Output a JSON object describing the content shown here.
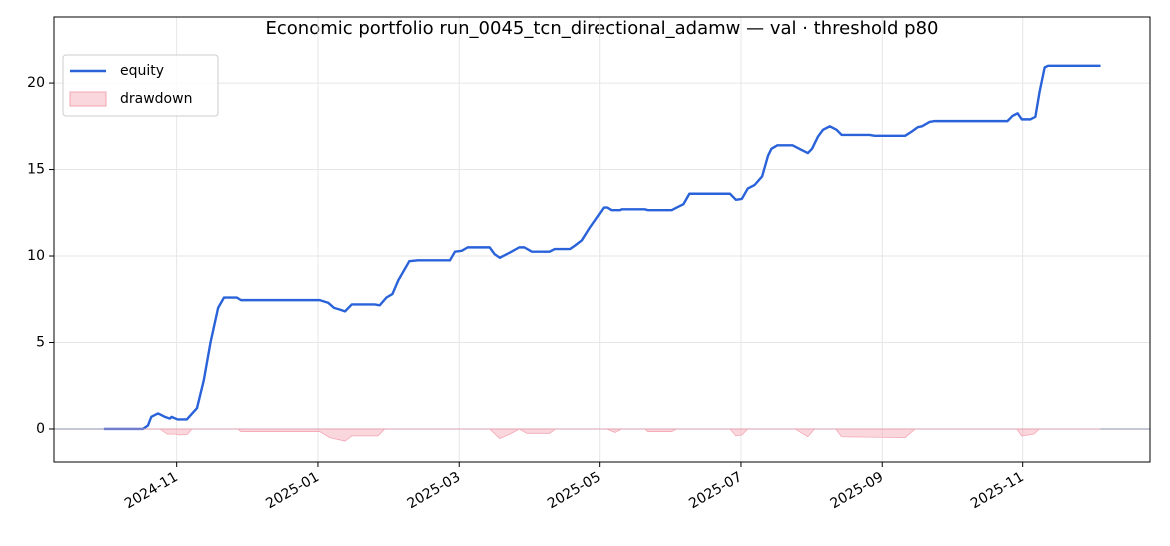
{
  "chart_data": {
    "type": "line",
    "title": "Economic portfolio run_0045_tcn_directional_adamw — val · threshold p80",
    "xlim": [
      2024.688,
      2025.9835
    ],
    "ylim": [
      -1.91,
      23.82
    ],
    "xticks": [
      {
        "value": 2024.833,
        "label": "2024-11"
      },
      {
        "value": 2025.0,
        "label": "2025-01"
      },
      {
        "value": 2025.167,
        "label": "2025-03"
      },
      {
        "value": 2025.333,
        "label": "2025-05"
      },
      {
        "value": 2025.5,
        "label": "2025-07"
      },
      {
        "value": 2025.667,
        "label": "2025-09"
      },
      {
        "value": 2025.833,
        "label": "2025-11"
      }
    ],
    "yticks": [
      0,
      5,
      10,
      15,
      20
    ],
    "grid": true,
    "legend": "upper-left",
    "hline": 0,
    "series": [
      {
        "name": "equity",
        "color": "#2962d9",
        "style": "line",
        "x": [
          2024.747,
          2024.793,
          2024.799,
          2024.803,
          2024.811,
          2024.819,
          2024.825,
          2024.827,
          2024.834,
          2024.845,
          2024.857,
          2024.865,
          2024.873,
          2024.882,
          2024.889,
          2024.904,
          2024.909,
          2025.002,
          2025.012,
          2025.019,
          2025.026,
          2025.032,
          2025.04,
          2025.067,
          2025.073,
          2025.081,
          2025.088,
          2025.095,
          2025.108,
          2025.118,
          2025.156,
          2025.162,
          2025.17,
          2025.177,
          2025.203,
          2025.209,
          2025.215,
          2025.227,
          2025.238,
          2025.244,
          2025.253,
          2025.274,
          2025.28,
          2025.298,
          2025.304,
          2025.312,
          2025.321,
          2025.331,
          2025.338,
          2025.342,
          2025.347,
          2025.357,
          2025.359,
          2025.386,
          2025.39,
          2025.418,
          2025.424,
          2025.432,
          2025.439,
          2025.487,
          2025.494,
          2025.501,
          2025.508,
          2025.516,
          2025.525,
          2025.532,
          2025.536,
          2025.543,
          2025.561,
          2025.569,
          2025.579,
          2025.584,
          2025.591,
          2025.597,
          2025.605,
          2025.613,
          2025.619,
          2025.652,
          2025.658,
          2025.694,
          2025.702,
          2025.709,
          2025.714,
          2025.723,
          2025.729,
          2025.815,
          2025.821,
          2025.827,
          2025.832,
          2025.842,
          2025.848,
          2025.853,
          2025.859,
          2025.863,
          2025.925
        ],
        "values": [
          0,
          0,
          0.2,
          0.7,
          0.9,
          0.7,
          0.6,
          0.7,
          0.55,
          0.55,
          1.2,
          2.8,
          5.0,
          7.0,
          7.6,
          7.6,
          7.45,
          7.45,
          7.3,
          7.0,
          6.9,
          6.8,
          7.2,
          7.2,
          7.15,
          7.6,
          7.8,
          8.6,
          9.7,
          9.75,
          9.75,
          10.25,
          10.3,
          10.5,
          10.5,
          10.1,
          9.9,
          10.2,
          10.5,
          10.5,
          10.25,
          10.25,
          10.4,
          10.4,
          10.6,
          10.9,
          11.6,
          12.3,
          12.8,
          12.8,
          12.65,
          12.65,
          12.7,
          12.7,
          12.65,
          12.65,
          12.8,
          13.0,
          13.6,
          13.6,
          13.25,
          13.3,
          13.9,
          14.1,
          14.6,
          15.8,
          16.2,
          16.4,
          16.4,
          16.2,
          15.95,
          16.2,
          16.9,
          17.3,
          17.5,
          17.3,
          17.0,
          17.0,
          16.95,
          16.95,
          17.2,
          17.45,
          17.5,
          17.75,
          17.8,
          17.8,
          18.1,
          18.25,
          17.9,
          17.9,
          18.05,
          19.5,
          20.9,
          21.0,
          21.0
        ]
      },
      {
        "name": "drawdown",
        "color": "#f4a6b4",
        "style": "area",
        "x": [
          2024.747,
          2024.813,
          2024.822,
          2024.831,
          2024.837,
          2024.846,
          2024.851,
          2024.905,
          2024.909,
          2025.002,
          2025.014,
          2025.032,
          2025.04,
          2025.071,
          2025.079,
          2025.203,
          2025.215,
          2025.227,
          2025.238,
          2025.247,
          2025.274,
          2025.281,
          2025.341,
          2025.351,
          2025.359,
          2025.386,
          2025.39,
          2025.418,
          2025.424,
          2025.487,
          2025.494,
          2025.501,
          2025.508,
          2025.564,
          2025.579,
          2025.587,
          2025.612,
          2025.619,
          2025.694,
          2025.706,
          2025.826,
          2025.832,
          2025.846,
          2025.853,
          2025.925
        ],
        "values": [
          0,
          0,
          -0.3,
          -0.3,
          -0.35,
          -0.3,
          0,
          0,
          -0.15,
          -0.15,
          -0.5,
          -0.7,
          -0.4,
          -0.4,
          0,
          0,
          -0.55,
          -0.3,
          0,
          -0.25,
          -0.25,
          0,
          0,
          -0.2,
          0,
          0,
          -0.15,
          -0.15,
          0,
          0,
          -0.4,
          -0.35,
          0,
          0,
          -0.45,
          0,
          0,
          -0.45,
          -0.5,
          0,
          0,
          -0.4,
          -0.3,
          0,
          0
        ]
      }
    ]
  }
}
